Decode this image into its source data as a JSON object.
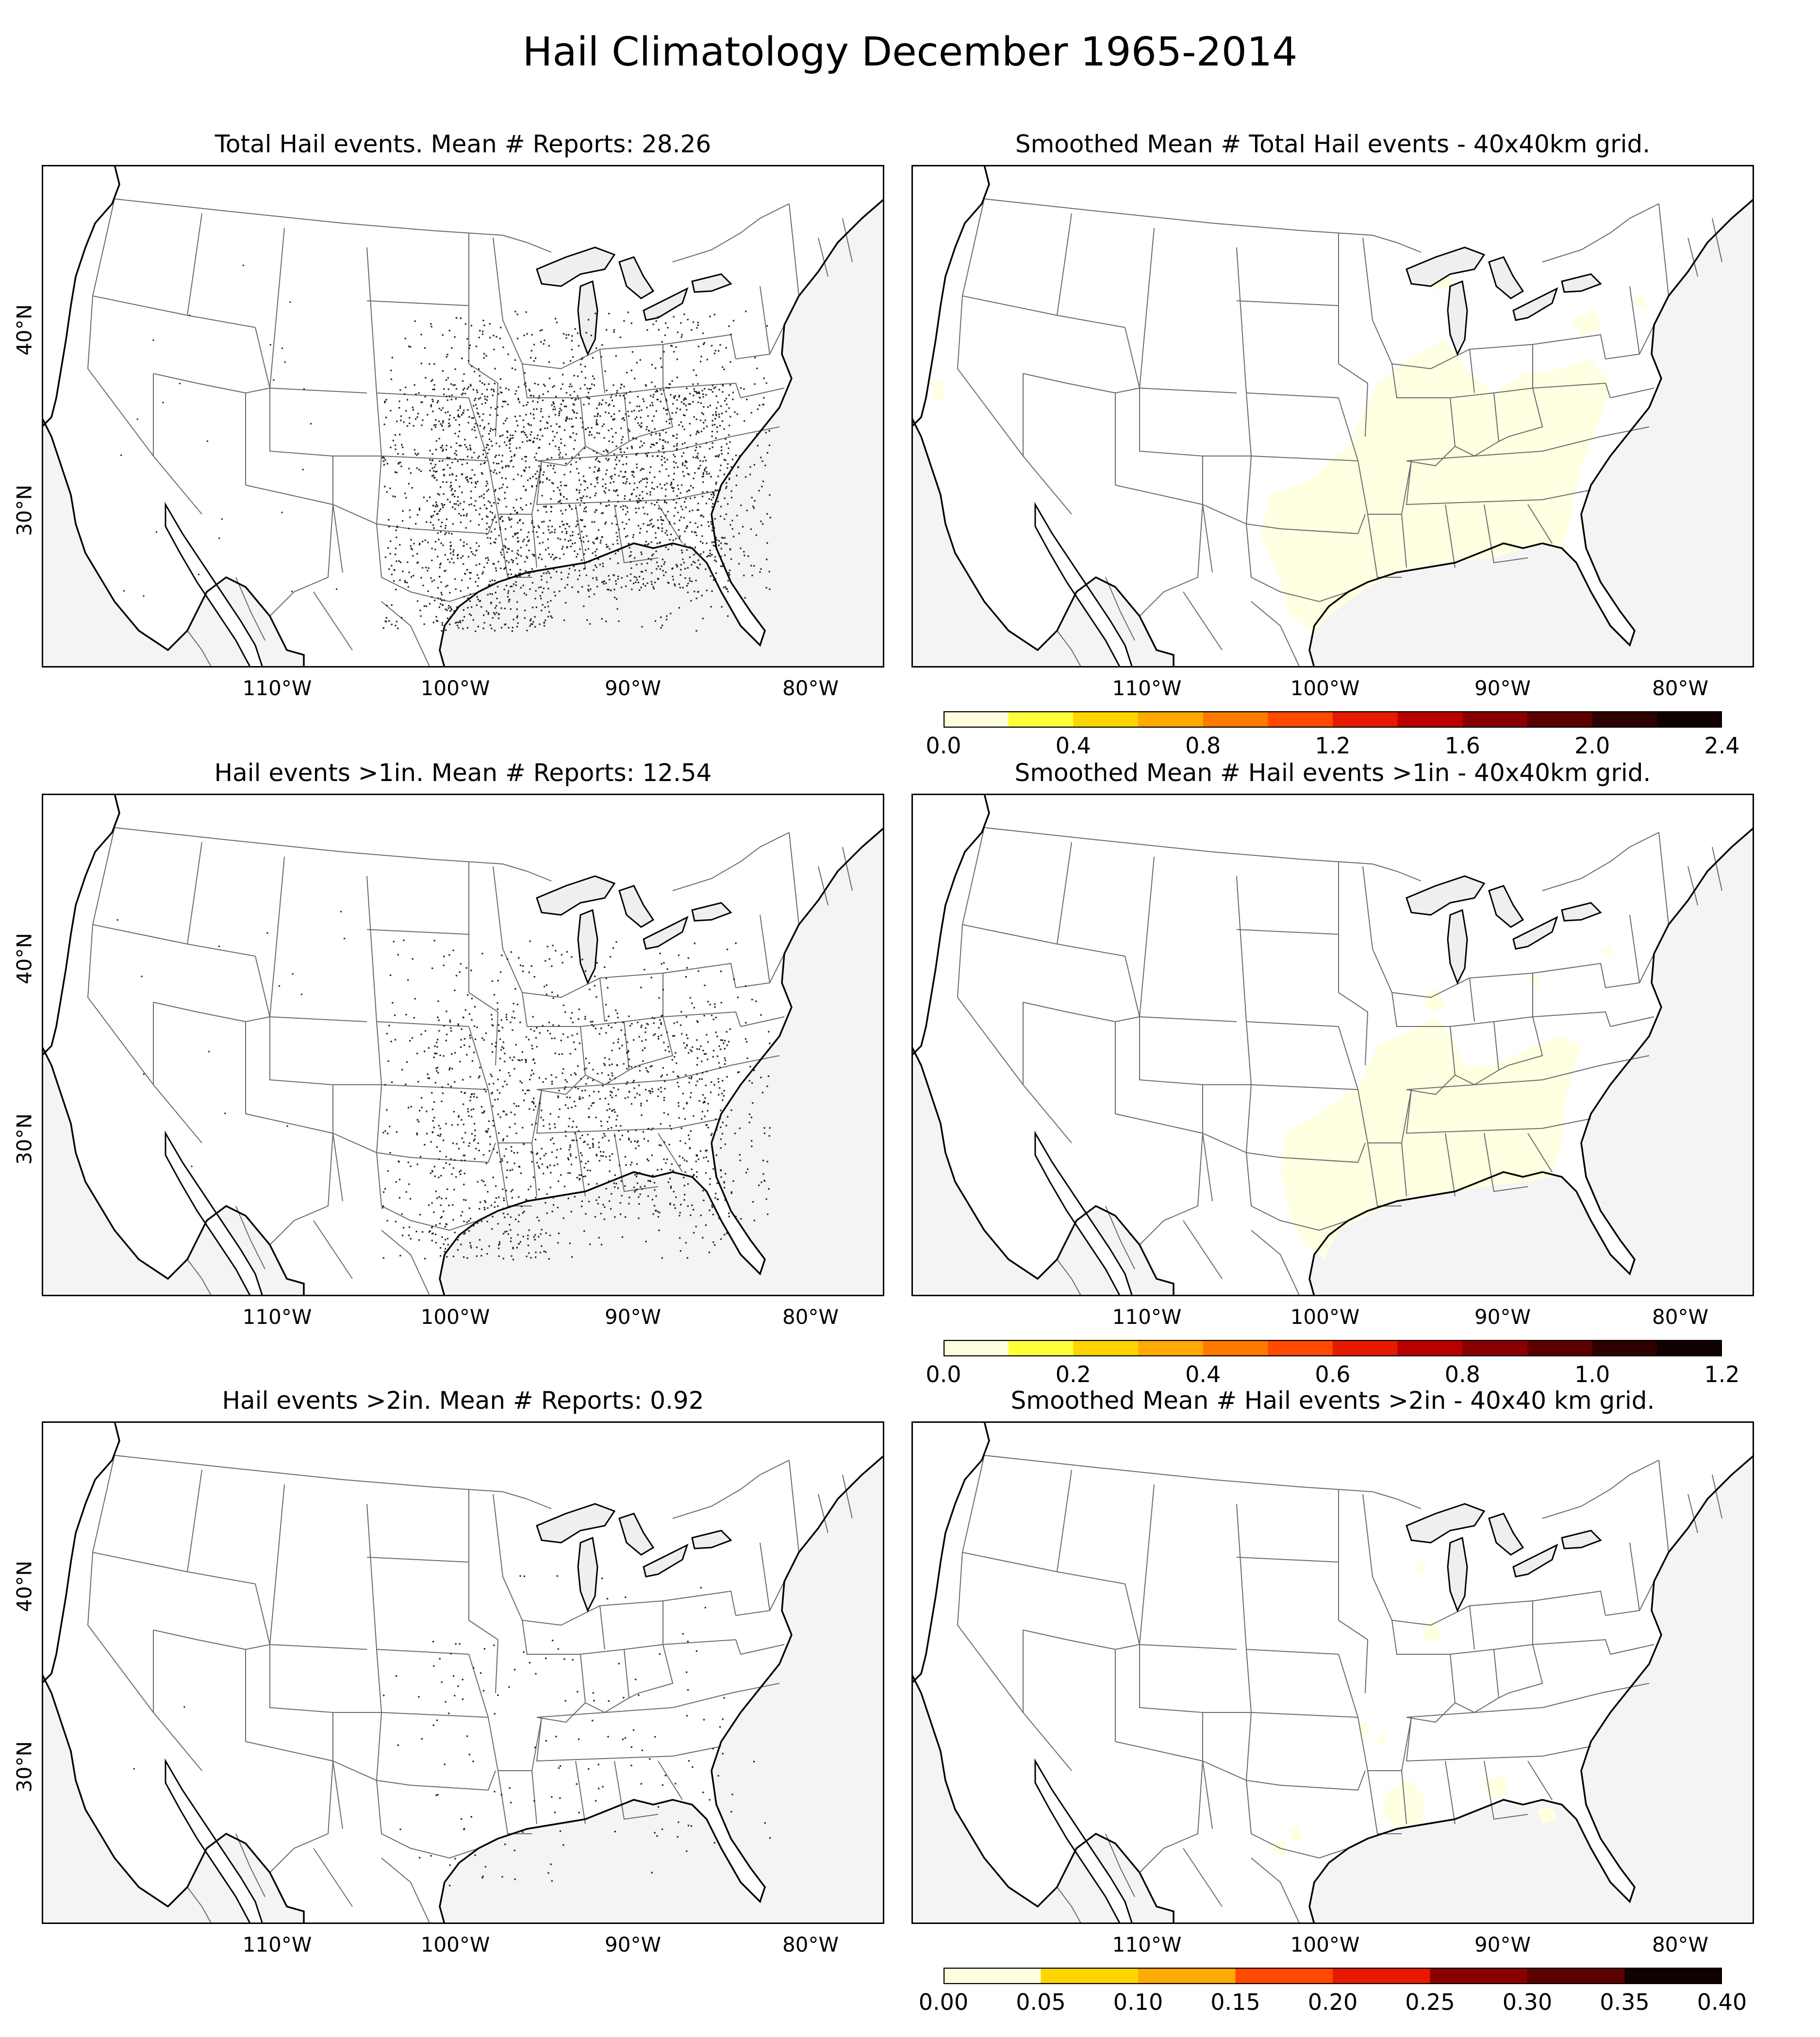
{
  "figure_title": "Hail Climatology December 1965-2014",
  "colors": {
    "ocean": "#f4f4f4",
    "land": "#ffffff",
    "lakes": "#efefef",
    "border": "#000000",
    "state_line": "#6a6a6a",
    "dots": "#222222",
    "cmap": [
      "#ffffe0",
      "#ffff3a",
      "#ffd500",
      "#ffaa00",
      "#ff7a00",
      "#ff4a00",
      "#e61a00",
      "#b80000",
      "#8a0000",
      "#5c0000",
      "#2e0000",
      "#100000"
    ]
  },
  "axes": {
    "lon_ticks": [
      "110°W",
      "100°W",
      "90°W",
      "80°W"
    ],
    "lat_ticks": [
      "40°N",
      "30°N"
    ]
  },
  "panels": [
    {
      "id": "total-events",
      "title": "Total Hail events. Mean # Reports: 28.26",
      "kind": "points",
      "density": 1.0
    },
    {
      "id": "smoothed-total",
      "title": "Smoothed Mean # Total Hail events - 40x40km grid.",
      "kind": "smoothed",
      "level": "high",
      "colorbar": {
        "ticks": [
          "0.0",
          "0.4",
          "0.8",
          "1.2",
          "1.6",
          "2.0",
          "2.4"
        ],
        "bins": 12
      }
    },
    {
      "id": "events-1in",
      "title": "Hail events >1in. Mean # Reports: 12.54",
      "kind": "points",
      "density": 0.55
    },
    {
      "id": "smoothed-1in",
      "title": "Smoothed Mean # Hail events >1in - 40x40km grid.",
      "kind": "smoothed",
      "level": "mid",
      "colorbar": {
        "ticks": [
          "0.0",
          "0.2",
          "0.4",
          "0.6",
          "0.8",
          "1.0",
          "1.2"
        ],
        "bins": 12
      }
    },
    {
      "id": "events-2in",
      "title": "Hail events >2in. Mean # Reports: 0.92",
      "kind": "points",
      "density": 0.06
    },
    {
      "id": "smoothed-2in",
      "title": "Smoothed Mean # Hail events >2in - 40x40 km grid.",
      "kind": "smoothed",
      "level": "low",
      "colorbar": {
        "ticks": [
          "0.00",
          "0.05",
          "0.10",
          "0.15",
          "0.20",
          "0.25",
          "0.30",
          "0.35",
          "0.40"
        ],
        "bins": 8
      }
    }
  ]
}
